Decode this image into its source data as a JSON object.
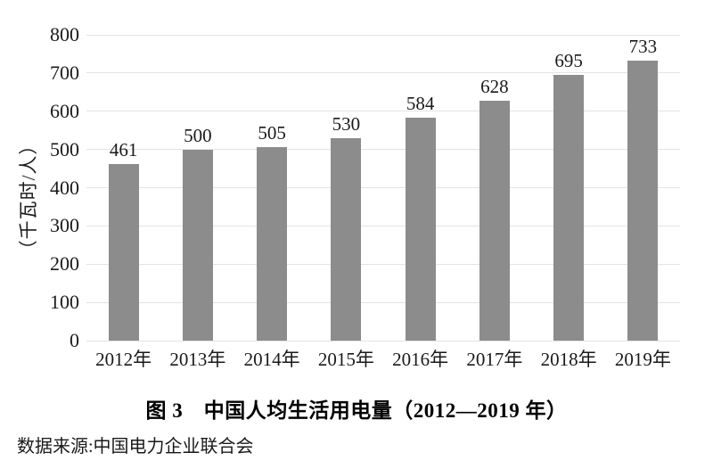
{
  "chart_data": {
    "type": "bar",
    "title": "图 3　中国人均生活用电量（2012—2019 年）",
    "ylabel": "（千瓦时/人）",
    "xlabel": "",
    "categories": [
      "2012年",
      "2013年",
      "2014年",
      "2015年",
      "2016年",
      "2017年",
      "2018年",
      "2019年"
    ],
    "values": [
      461,
      500,
      505,
      530,
      584,
      628,
      695,
      733
    ],
    "ylim": [
      0,
      800
    ],
    "ytick_step": 100,
    "yticks": [
      0,
      100,
      200,
      300,
      400,
      500,
      600,
      700,
      800
    ],
    "grid": "horizontal",
    "legend_position": "none",
    "bar_color": "#8c8c8c",
    "gridline_color": "#e3e3e3",
    "text_color": "#1a1a1a",
    "data_labels": true
  },
  "source": {
    "text": "数据来源:中国电力企业联合会"
  }
}
